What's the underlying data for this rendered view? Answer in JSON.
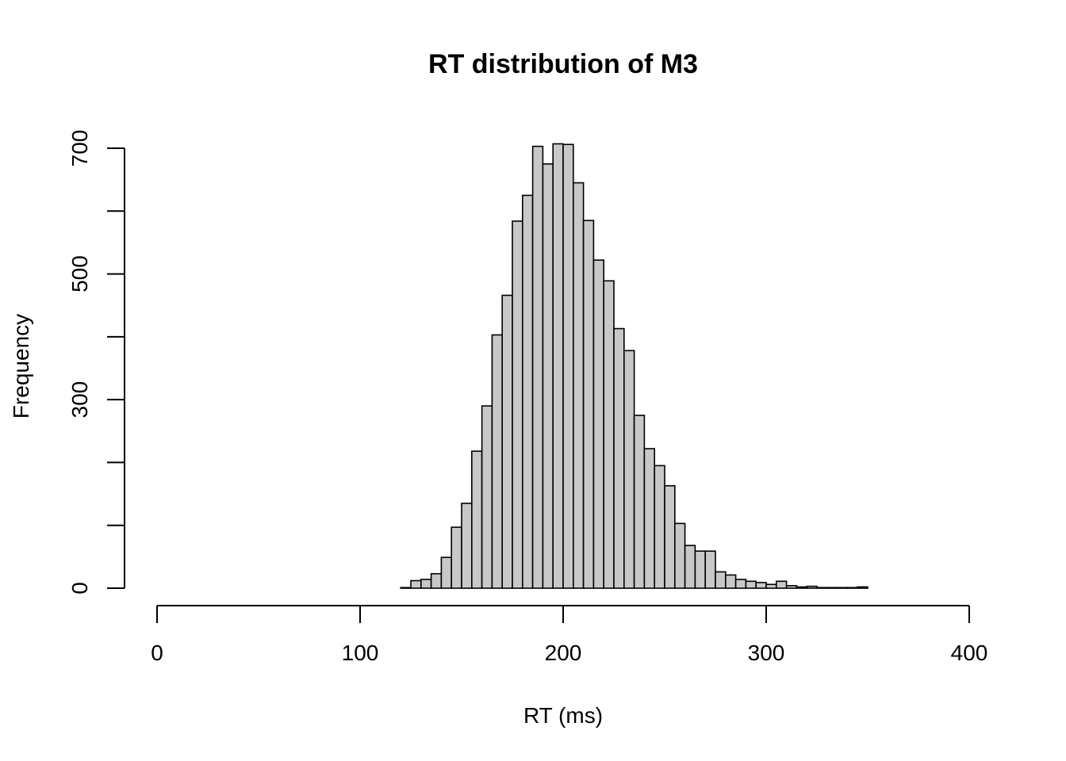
{
  "chart_data": {
    "type": "bar",
    "subtype": "histogram",
    "title": "RT distribution of M3",
    "xlabel": "RT (ms)",
    "ylabel": "Frequency",
    "xlim": [
      0,
      400
    ],
    "ylim": [
      0,
      700
    ],
    "x_ticks": [
      0,
      100,
      200,
      300,
      400
    ],
    "y_ticks": [
      0,
      100,
      200,
      300,
      400,
      500,
      600,
      700
    ],
    "y_tick_labels": [
      "0",
      "",
      "",
      "300",
      "",
      "500",
      "",
      "700"
    ],
    "grid": false,
    "legend": "none",
    "bar_fill": "#c8c8c8",
    "bar_edge": "#000000",
    "bins": {
      "start": 120,
      "width": 5,
      "counts": [
        1,
        12,
        14,
        23,
        49,
        97,
        135,
        218,
        290,
        403,
        466,
        584,
        625,
        703,
        675,
        707,
        706,
        645,
        585,
        522,
        489,
        413,
        378,
        275,
        222,
        195,
        163,
        103,
        68,
        59,
        59,
        26,
        21,
        14,
        11,
        9,
        6,
        11,
        4,
        2,
        3,
        1,
        1,
        1,
        1,
        2
      ]
    }
  }
}
